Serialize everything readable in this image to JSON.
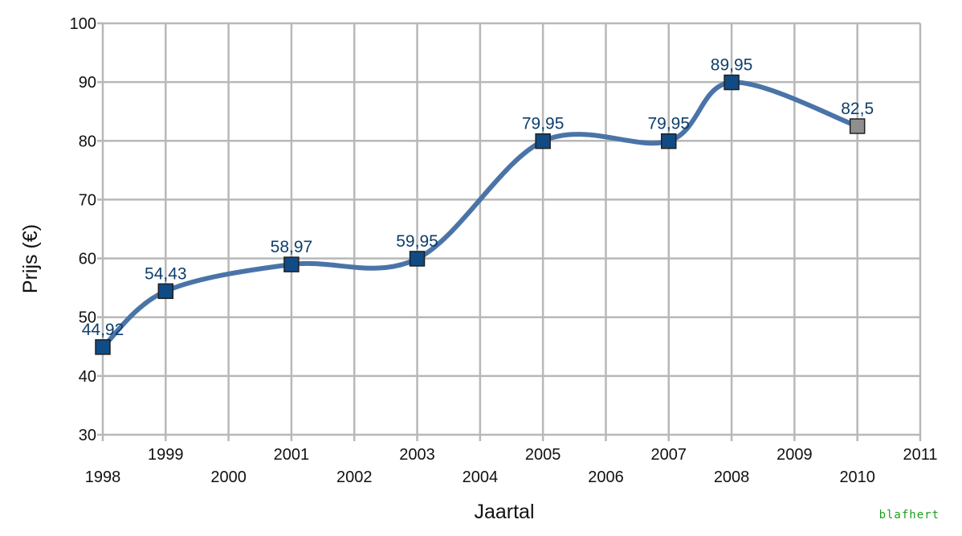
{
  "chart_data": {
    "type": "line",
    "title": "",
    "xlabel": "Jaartal",
    "ylabel": "Prijs (€)",
    "x": [
      "1998",
      "1999",
      "2001",
      "2003",
      "2005",
      "2007",
      "2008",
      "2010"
    ],
    "series": [
      {
        "values": [
          44.92,
          54.43,
          58.97,
          59.95,
          79.95,
          79.95,
          89.95,
          82.5
        ],
        "labels": [
          "44,92",
          "54,43",
          "58,97",
          "59,95",
          "79,95",
          "79,95",
          "89,95",
          "82,5"
        ],
        "line_color": "#4a74a8",
        "marker_color": "#114b85",
        "last_marker_color": "#8f8f8f"
      }
    ],
    "xticks": [
      "1998",
      "1999",
      "2000",
      "2001",
      "2002",
      "2003",
      "2004",
      "2005",
      "2006",
      "2007",
      "2008",
      "2009",
      "2010",
      "2011"
    ],
    "xlim": [
      1998,
      2011
    ],
    "yticks": [
      30,
      40,
      50,
      60,
      70,
      80,
      90,
      100
    ],
    "ylim": [
      30,
      100
    ],
    "grid": true,
    "legend": "none",
    "watermark": "blafhert"
  }
}
